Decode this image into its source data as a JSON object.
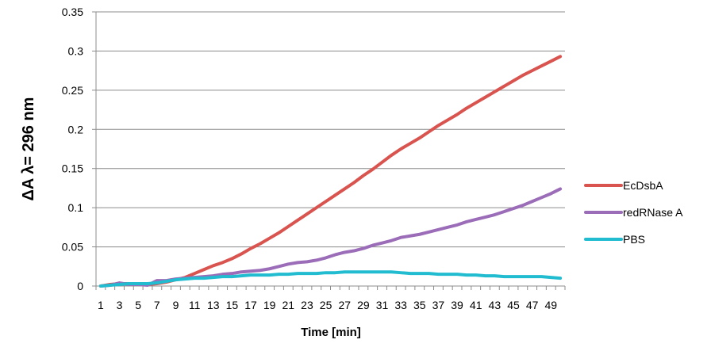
{
  "chart_data": {
    "type": "line",
    "title": "",
    "xlabel": "Time [min]",
    "ylabel": "ΔA λ= 296 nm",
    "ylim": [
      0,
      0.35
    ],
    "yticks": [
      "0",
      "0.05",
      "0.1",
      "0.15",
      "0.2",
      "0.25",
      "0.3",
      "0.35"
    ],
    "grid": true,
    "legend": "right",
    "x": [
      1,
      2,
      3,
      4,
      5,
      6,
      7,
      8,
      9,
      10,
      11,
      12,
      13,
      14,
      15,
      16,
      17,
      18,
      19,
      20,
      21,
      22,
      23,
      24,
      25,
      26,
      27,
      28,
      29,
      30,
      31,
      32,
      33,
      34,
      35,
      36,
      37,
      38,
      39,
      40,
      41,
      42,
      43,
      44,
      45,
      46,
      47,
      48,
      49,
      50
    ],
    "x_tick_labels": [
      "1",
      "3",
      "5",
      "7",
      "9",
      "11",
      "13",
      "15",
      "17",
      "19",
      "21",
      "23",
      "25",
      "27",
      "29",
      "31",
      "33",
      "35",
      "37",
      "39",
      "41",
      "43",
      "45",
      "47",
      "49"
    ],
    "series": [
      {
        "name": "EcDsbA",
        "color": "#d9534f",
        "values": [
          0,
          0.002,
          0.003,
          0.003,
          0.003,
          0.002,
          0.003,
          0.005,
          0.008,
          0.011,
          0.016,
          0.021,
          0.026,
          0.03,
          0.035,
          0.041,
          0.048,
          0.054,
          0.061,
          0.068,
          0.076,
          0.084,
          0.092,
          0.1,
          0.108,
          0.116,
          0.124,
          0.132,
          0.141,
          0.149,
          0.158,
          0.167,
          0.175,
          0.182,
          0.189,
          0.197,
          0.205,
          0.212,
          0.219,
          0.227,
          0.234,
          0.241,
          0.248,
          0.255,
          0.262,
          0.269,
          0.275,
          0.281,
          0.287,
          0.293
        ]
      },
      {
        "name": "redRNase A",
        "color": "#9b6cb7",
        "values": [
          0,
          0.001,
          0.004,
          0.002,
          0.002,
          0.001,
          0.007,
          0.007,
          0.009,
          0.01,
          0.011,
          0.012,
          0.013,
          0.015,
          0.016,
          0.018,
          0.019,
          0.02,
          0.022,
          0.025,
          0.028,
          0.03,
          0.031,
          0.033,
          0.036,
          0.04,
          0.043,
          0.045,
          0.048,
          0.052,
          0.055,
          0.058,
          0.062,
          0.064,
          0.066,
          0.069,
          0.072,
          0.075,
          0.078,
          0.082,
          0.085,
          0.088,
          0.091,
          0.095,
          0.099,
          0.103,
          0.108,
          0.113,
          0.118,
          0.124
        ]
      },
      {
        "name": "PBS",
        "color": "#22bcd0",
        "values": [
          0,
          0.001,
          0.002,
          0.003,
          0.003,
          0.003,
          0.004,
          0.006,
          0.008,
          0.009,
          0.01,
          0.01,
          0.011,
          0.012,
          0.012,
          0.013,
          0.014,
          0.014,
          0.014,
          0.015,
          0.015,
          0.016,
          0.016,
          0.016,
          0.017,
          0.017,
          0.018,
          0.018,
          0.018,
          0.018,
          0.018,
          0.018,
          0.017,
          0.016,
          0.016,
          0.016,
          0.015,
          0.015,
          0.015,
          0.014,
          0.014,
          0.013,
          0.013,
          0.012,
          0.012,
          0.012,
          0.012,
          0.012,
          0.011,
          0.01
        ]
      }
    ]
  }
}
